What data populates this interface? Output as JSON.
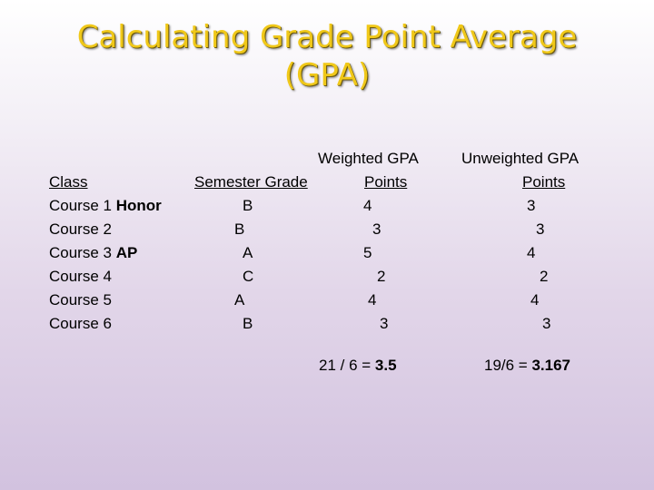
{
  "title": {
    "line1": "Calculating Grade Point Average",
    "line2": "(GPA)"
  },
  "headers": {
    "class": "Class",
    "semester_grade": "Semester Grade",
    "weighted_top": "Weighted GPA",
    "weighted_bottom": "Points",
    "unweighted_top": "Unweighted GPA",
    "unweighted_bottom": "Points"
  },
  "rows": [
    {
      "course": "Course 1",
      "tag": "Honor",
      "grade": "B",
      "weighted": "4",
      "unweighted": "3"
    },
    {
      "course": "Course 2",
      "tag": "",
      "grade": "B",
      "weighted": "3",
      "unweighted": "3"
    },
    {
      "course": "Course 3",
      "tag": "AP",
      "grade": "A",
      "weighted": "5",
      "unweighted": "4"
    },
    {
      "course": "Course 4",
      "tag": "",
      "grade": "C",
      "weighted": "2",
      "unweighted": "2"
    },
    {
      "course": "Course 5",
      "tag": "",
      "grade": "A",
      "weighted": "4",
      "unweighted": "4"
    },
    {
      "course": "Course 6",
      "tag": "",
      "grade": "B",
      "weighted": "3",
      "unweighted": "3"
    }
  ],
  "totals": {
    "weighted_expr": "21 / 6 = ",
    "weighted_value": "3.5",
    "unweighted_expr": "19/6 = ",
    "unweighted_value": "3.167"
  }
}
